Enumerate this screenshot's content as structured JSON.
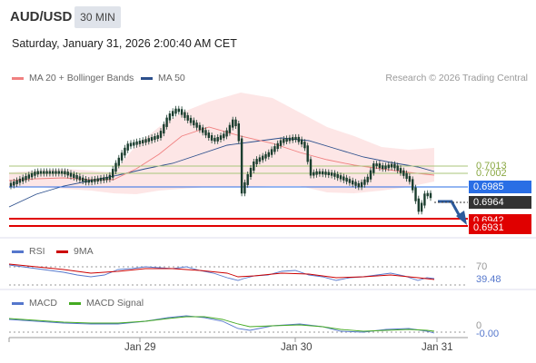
{
  "header": {
    "symbol": "AUD/USD",
    "timeframe": "30 MIN",
    "datetime": "Saturday, January 31, 2026 2:00:40 AM CET"
  },
  "legend": {
    "ma20_label": "MA 20 + Bollinger Bands",
    "ma50_label": "MA 50",
    "credit": "Research © 2026 Trading Central"
  },
  "colors": {
    "ma20": "#f08080",
    "ma50": "#2c4f8c",
    "bollinger_fill": "#fde0e0",
    "candle": "#1a3d2e",
    "resistance": "#a8c57a",
    "pivot": "#2a6ee5",
    "support": "#e00000",
    "current": "#333333",
    "rsi": "#5577cc",
    "rsi_ma": "#cc0000",
    "macd": "#5577cc",
    "macd_signal": "#44aa22"
  },
  "price_levels": {
    "resistance_1": "0.7013",
    "resistance_2": "0.7002",
    "pivot": "0.6985",
    "current": "0.6964",
    "support_1": "0.6942",
    "support_2": "0.6931"
  },
  "rsi": {
    "label": "RSI",
    "ma_label": "9MA",
    "level_70": "70",
    "value": "39.48",
    "level_30": "30"
  },
  "macd": {
    "label": "MACD",
    "signal_label": "MACD Signal",
    "zero": "0",
    "value": "-0.00"
  },
  "x_axis": {
    "labels": [
      "Jan 29",
      "Jan 30",
      "Jan 31"
    ]
  }
}
